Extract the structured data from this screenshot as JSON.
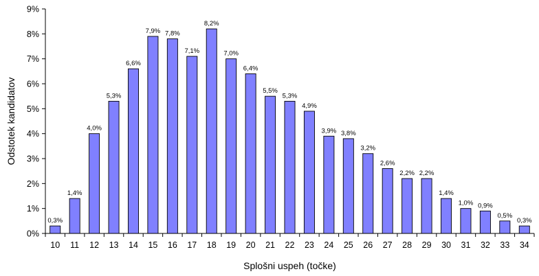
{
  "chart_data": {
    "type": "bar",
    "xlabel": "Splošni uspeh (točke)",
    "ylabel": "Odstotek kandidatov",
    "ylim": [
      0,
      9
    ],
    "y_ticks": [
      "0%",
      "1%",
      "2%",
      "3%",
      "4%",
      "5%",
      "6%",
      "7%",
      "8%",
      "9%"
    ],
    "grid": false,
    "bar_color": "#8080ff",
    "categories": [
      "10",
      "11",
      "12",
      "13",
      "14",
      "15",
      "16",
      "17",
      "18",
      "19",
      "20",
      "21",
      "22",
      "23",
      "24",
      "25",
      "26",
      "27",
      "28",
      "29",
      "30",
      "31",
      "32",
      "33",
      "34"
    ],
    "values": [
      0.3,
      1.4,
      4.0,
      5.3,
      6.6,
      7.9,
      7.8,
      7.1,
      8.2,
      7.0,
      6.4,
      5.5,
      5.3,
      4.9,
      3.9,
      3.8,
      3.2,
      2.6,
      2.2,
      2.2,
      1.4,
      1.0,
      0.9,
      0.5,
      0.3
    ],
    "data_labels": [
      "0,3%",
      "1,4%",
      "4,0%",
      "5,3%",
      "6,6%",
      "7,9%",
      "7,8%",
      "7,1%",
      "8,2%",
      "7,0%",
      "6,4%",
      "5,5%",
      "5,3%",
      "4,9%",
      "3,9%",
      "3,8%",
      "3,2%",
      "2,6%",
      "2,2%",
      "2,2%",
      "1,4%",
      "1,0%",
      "0,9%",
      "0,5%",
      "0,3%"
    ]
  }
}
